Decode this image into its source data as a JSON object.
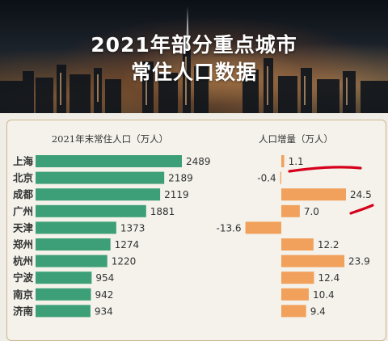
{
  "header": {
    "title_line1": "2021年部分重点城市",
    "title_line2": "常住人口数据"
  },
  "colors": {
    "population": "#3c9f77",
    "increase": "#f2a15c",
    "annotation": "#d6001c"
  },
  "chart_data": [
    {
      "type": "bar",
      "orientation": "horizontal",
      "title": "2021年末常住人口（万人）",
      "categories": [
        "上海",
        "北京",
        "成都",
        "广州",
        "天津",
        "郑州",
        "杭州",
        "宁波",
        "南京",
        "济南"
      ],
      "values": [
        2489,
        2189,
        2119,
        1881,
        1373,
        1274,
        1220,
        954,
        942,
        934
      ],
      "data_labels": [
        "2489",
        "2189",
        "2119",
        "1881",
        "1373",
        "1274",
        "1220",
        "954",
        "942",
        "934"
      ]
    },
    {
      "type": "bar",
      "orientation": "horizontal",
      "title": "人口增量（万人）",
      "categories": [
        "上海",
        "北京",
        "成都",
        "广州",
        "天津",
        "郑州",
        "杭州",
        "宁波",
        "南京",
        "济南"
      ],
      "values": [
        1.1,
        -0.4,
        24.5,
        7.0,
        -13.6,
        12.2,
        23.9,
        12.4,
        10.4,
        9.4
      ],
      "data_labels": [
        "1.1",
        "-0.4",
        "24.5",
        "7.0",
        "-13.6",
        "12.2",
        "23.9",
        "12.4",
        "10.4",
        "9.4"
      ]
    }
  ]
}
